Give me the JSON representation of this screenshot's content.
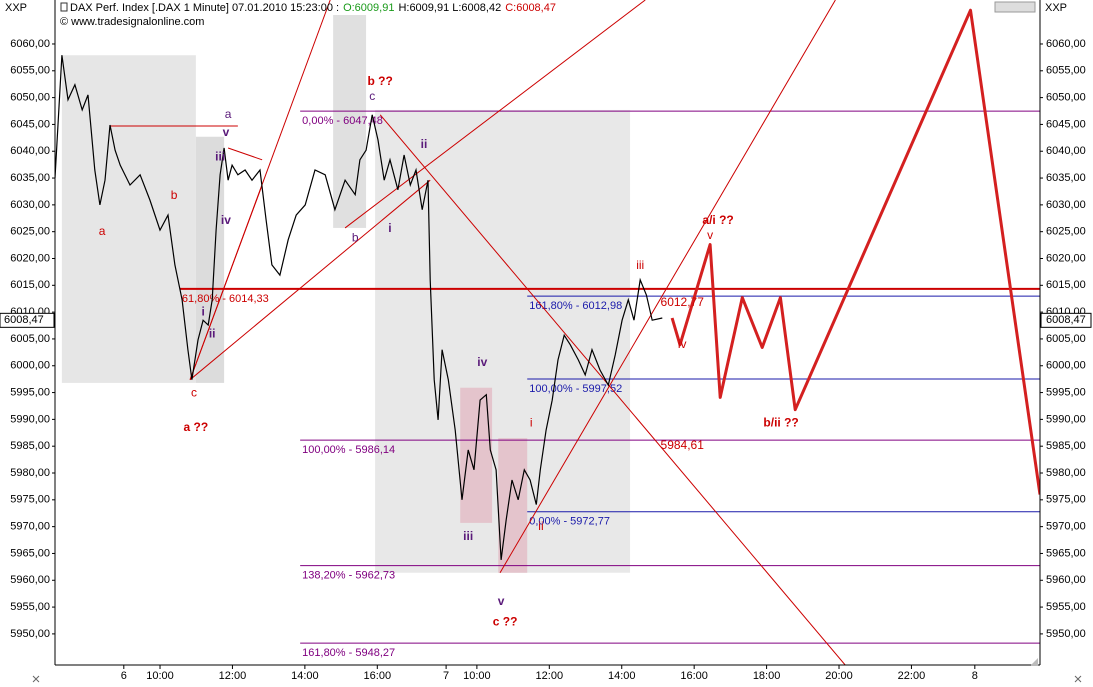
{
  "chart_data": {
    "type": "line",
    "symbol": "XXP",
    "title": "DAX Perf. Index [.DAX  1 Minute] 07.01.2010 15:23:00 :",
    "ohlc": [
      {
        "text": "O:6009,91",
        "color": "#1a9a1a"
      },
      {
        "text": "H:6009,91 L:6008,42",
        "color": "#000000"
      },
      {
        "text": "C:6008,47",
        "color": "#cc0000"
      }
    ],
    "copyright": "© www.tradesignalonline.com",
    "xlim": [
      7.1,
      34.3
    ],
    "ylim": [
      5944.2,
      6068.2
    ],
    "xticks": [
      {
        "value": 9,
        "label": "6"
      },
      {
        "value": 10,
        "label": "10:00"
      },
      {
        "value": 12,
        "label": "12:00"
      },
      {
        "value": 14,
        "label": "14:00"
      },
      {
        "value": 16,
        "label": "16:00"
      },
      {
        "value": 17.9,
        "label": "7"
      },
      {
        "value": 18.75,
        "label": "10:00"
      },
      {
        "value": 20.75,
        "label": "12:00"
      },
      {
        "value": 22.75,
        "label": "14:00"
      },
      {
        "value": 24.75,
        "label": "16:00"
      },
      {
        "value": 26.75,
        "label": "18:00"
      },
      {
        "value": 28.75,
        "label": "20:00"
      },
      {
        "value": 30.75,
        "label": "22:00"
      },
      {
        "value": 32.5,
        "label": "8"
      }
    ],
    "yticks": [
      {
        "value": 5950,
        "label": "5950,00"
      },
      {
        "value": 5955,
        "label": "5955,00"
      },
      {
        "value": 5960,
        "label": "5960,00"
      },
      {
        "value": 5965,
        "label": "5965,00"
      },
      {
        "value": 5970,
        "label": "5970,00"
      },
      {
        "value": 5975,
        "label": "5975,00"
      },
      {
        "value": 5980,
        "label": "5980,00"
      },
      {
        "value": 5985,
        "label": "5985,00"
      },
      {
        "value": 5990,
        "label": "5990,00"
      },
      {
        "value": 5995,
        "label": "5995,00"
      },
      {
        "value": 6000,
        "label": "6000,00"
      },
      {
        "value": 6005,
        "label": "6005,00"
      },
      {
        "value": 6010,
        "label": "6010,00"
      },
      {
        "value": 6015,
        "label": "6015,00"
      },
      {
        "value": 6020,
        "label": "6020,00"
      },
      {
        "value": 6025,
        "label": "6025,00"
      },
      {
        "value": 6030,
        "label": "6030,00"
      },
      {
        "value": 6035,
        "label": "6035,00"
      },
      {
        "value": 6040,
        "label": "6040,00"
      },
      {
        "value": 6045,
        "label": "6045,00"
      },
      {
        "value": 6050,
        "label": "6050,00"
      },
      {
        "value": 6055,
        "label": "6055,00"
      },
      {
        "value": 6060,
        "label": "6060,00"
      }
    ],
    "last_price": {
      "value": 6008.47,
      "label": "6008,47"
    },
    "zones": [
      {
        "x": [
          7.29,
          10.99
        ],
        "y": [
          5996.8,
          6057.9
        ],
        "color": "#e6e6e6"
      },
      {
        "x": [
          10.99,
          11.77
        ],
        "y": [
          5996.8,
          6042.7
        ],
        "color": "#dcdcdc"
      },
      {
        "x": [
          14.78,
          15.69
        ],
        "y": [
          6025.7,
          6065.4
        ],
        "color": "#e0e0e0"
      },
      {
        "x": [
          15.94,
          22.98
        ],
        "y": [
          5961.4,
          6047.7
        ],
        "color": "#e8e8e8"
      },
      {
        "x": [
          18.29,
          19.17
        ],
        "y": [
          5970.7,
          5995.9
        ],
        "color": "#e4c4cc"
      },
      {
        "x": [
          19.34,
          20.14
        ],
        "y": [
          5961.4,
          5986.5
        ],
        "color": "#e4c4cc"
      }
    ],
    "levels": [
      {
        "label": "0,00% - 6047,48",
        "value": 6047.48,
        "x0": 13.87,
        "color": "#800080"
      },
      {
        "label": "100,00% - 5986,14",
        "value": 5986.14,
        "x0": 13.87,
        "color": "#800080"
      },
      {
        "label": "138,20% - 5962,73",
        "value": 5962.73,
        "x0": 13.87,
        "color": "#800080"
      },
      {
        "label": "161,80% - 5948,27",
        "value": 5948.27,
        "x0": 13.87,
        "color": "#800080"
      },
      {
        "label": "161,80% - 6012,98",
        "value": 6012.98,
        "x0": 20.14,
        "color": "#1a1aaa"
      },
      {
        "label": "100,00% - 5997,52",
        "value": 5997.52,
        "x0": 20.14,
        "color": "#1a1aaa"
      },
      {
        "label": "0,00% - 5972,77",
        "value": 5972.77,
        "x0": 20.14,
        "color": "#1a1aaa"
      },
      {
        "label": "61,80% - 6014,33",
        "value": 6014.33,
        "x0": 10.55,
        "color": "#cc0000",
        "thick": true
      }
    ],
    "lines": [
      {
        "x": [
          10.83,
          14.7
        ],
        "y": [
          5997.4,
          6068.2
        ],
        "color": "#cc0000"
      },
      {
        "x": [
          10.83,
          12.82
        ],
        "y": [
          5997.4,
          6033.7
        ],
        "color": "#cc0000"
      },
      {
        "x": [
          10.83,
          17.46
        ],
        "y": [
          5997.4,
          6034.6
        ],
        "color": "#cc0000"
      },
      {
        "x": [
          11.88,
          12.82
        ],
        "y": [
          6040.6,
          6038.4
        ],
        "color": "#cc0000"
      },
      {
        "x": [
          15.11,
          23.4
        ],
        "y": [
          6025.7,
          6068.2
        ],
        "color": "#cc0000"
      },
      {
        "x": [
          19.39,
          28.65
        ],
        "y": [
          5961.4,
          6068.2
        ],
        "color": "#cc0000"
      },
      {
        "x": [
          16.08,
          28.92
        ],
        "y": [
          6046.8,
          5944.2
        ],
        "color": "#cc0000"
      },
      {
        "x": [
          8.62,
          12.15
        ],
        "y": [
          6044.7,
          6044.7
        ],
        "color": "#cc0000"
      }
    ],
    "x": [
      7.1,
      7.29,
      7.46,
      7.65,
      7.85,
      8.01,
      8.2,
      8.34,
      8.48,
      8.62,
      8.76,
      8.9,
      9.17,
      9.45,
      9.72,
      10.0,
      10.22,
      10.41,
      10.61,
      10.77,
      10.88,
      11.05,
      11.19,
      11.33,
      11.44,
      11.55,
      11.66,
      11.77,
      11.88,
      11.99,
      12.15,
      12.35,
      12.54,
      12.76,
      12.93,
      13.09,
      13.31,
      13.54,
      13.76,
      14.01,
      14.28,
      14.56,
      14.83,
      15.11,
      15.39,
      15.52,
      15.69,
      15.86,
      16.02,
      16.19,
      16.35,
      16.57,
      16.74,
      16.91,
      17.07,
      17.24,
      17.4,
      17.46,
      17.57,
      17.68,
      17.79,
      17.96,
      18.15,
      18.34,
      18.51,
      18.67,
      18.84,
      19.01,
      19.12,
      19.28,
      19.42,
      19.56,
      19.72,
      19.89,
      20.06,
      20.22,
      20.39,
      20.5,
      20.66,
      20.83,
      20.99,
      21.16,
      21.33,
      21.55,
      21.74,
      21.93,
      22.15,
      22.38,
      22.57,
      22.76,
      22.93,
      23.09,
      23.26,
      23.43,
      23.59,
      23.87
    ],
    "series": [
      {
        "color": "#000000",
        "values": [
          6035.0,
          6057.9,
          6049.6,
          6052.4,
          6047.7,
          6050.5,
          6036.5,
          6030.0,
          6034.6,
          6044.9,
          6040.2,
          6037.4,
          6033.7,
          6035.6,
          6030.9,
          6025.3,
          6028.1,
          6018.8,
          6012.3,
          6003.0,
          5997.4,
          6004.8,
          6008.5,
          6007.6,
          6012.3,
          6025.3,
          6035.6,
          6040.6,
          6034.6,
          6037.4,
          6035.6,
          6036.5,
          6034.6,
          6036.5,
          6027.2,
          6018.8,
          6016.9,
          6023.5,
          6028.1,
          6030.0,
          6036.5,
          6035.6,
          6029.1,
          6034.6,
          6031.9,
          6038.4,
          6040.2,
          6046.8,
          6042.1,
          6034.6,
          6038.4,
          6032.8,
          6039.3,
          6033.7,
          6036.5,
          6029.1,
          6034.6,
          6016.0,
          5997.4,
          5989.9,
          6003.0,
          5997.4,
          5988.0,
          5975.0,
          5984.3,
          5980.6,
          5993.6,
          5994.6,
          5984.3,
          5980.6,
          5963.8,
          5971.3,
          5978.7,
          5975.0,
          5980.6,
          5978.7,
          5974.1,
          5980.6,
          5988.0,
          5993.6,
          6001.1,
          6005.7,
          6003.9,
          6001.1,
          5998.3,
          6003.0,
          5999.2,
          5996.4,
          6002.0,
          6008.5,
          6012.3,
          6008.5,
          6016.0,
          6013.2,
          6008.5,
          6008.9
        ]
      }
    ],
    "forecast": {
      "color": "#d42020",
      "x": [
        24.14,
        24.36,
        25.19,
        25.47,
        26.08,
        26.63,
        27.13,
        27.54,
        32.38,
        34.3
      ],
      "values": [
        6008.9,
        6003.9,
        6022.6,
        5994.1,
        6012.7,
        6003.4,
        6012.7,
        5991.8,
        6066.3,
        5976.0
      ]
    },
    "labels": [
      {
        "text": "a",
        "x": 8.4,
        "y": 6025.0,
        "color": "#cc0000"
      },
      {
        "text": "b",
        "x": 10.39,
        "y": 6031.7,
        "color": "#cc0000"
      },
      {
        "text": "c",
        "x": 10.94,
        "y": 5994.9,
        "color": "#cc0000"
      },
      {
        "text": "a ??",
        "x": 10.99,
        "y": 5988.4,
        "color": "#cc0000",
        "bold": true
      },
      {
        "text": "a",
        "x": 11.88,
        "y": 6046.8,
        "color": "#5a1a7a"
      },
      {
        "text": "v",
        "x": 11.82,
        "y": 6043.4,
        "color": "#5a1a7a",
        "bold": true
      },
      {
        "text": "iii",
        "x": 11.66,
        "y": 6038.9,
        "color": "#5a1a7a",
        "bold": true
      },
      {
        "text": "iv",
        "x": 11.82,
        "y": 6027.0,
        "color": "#5a1a7a",
        "bold": true
      },
      {
        "text": "i",
        "x": 11.19,
        "y": 6010.0,
        "color": "#5a1a7a",
        "bold": true
      },
      {
        "text": "ii",
        "x": 11.44,
        "y": 6005.9,
        "color": "#5a1a7a",
        "bold": true
      },
      {
        "text": "b ??",
        "x": 16.08,
        "y": 6052.9,
        "color": "#cc0000",
        "bold": true
      },
      {
        "text": "c",
        "x": 15.86,
        "y": 6050.1,
        "color": "#5a1a7a"
      },
      {
        "text": "ii",
        "x": 17.29,
        "y": 6041.2,
        "color": "#5a1a7a",
        "bold": true
      },
      {
        "text": "b",
        "x": 15.39,
        "y": 6023.8,
        "color": "#5a1a7a"
      },
      {
        "text": "i",
        "x": 16.35,
        "y": 6025.5,
        "color": "#5a1a7a",
        "bold": true
      },
      {
        "text": "iv",
        "x": 18.9,
        "y": 6000.5,
        "color": "#5a1a7a",
        "bold": true
      },
      {
        "text": "iii",
        "x": 18.51,
        "y": 5968.1,
        "color": "#5a1a7a",
        "bold": true
      },
      {
        "text": "v",
        "x": 19.42,
        "y": 5956.0,
        "color": "#5a1a7a",
        "bold": true
      },
      {
        "text": "c ??",
        "x": 19.53,
        "y": 5952.2,
        "color": "#cc0000",
        "bold": true
      },
      {
        "text": "i",
        "x": 20.25,
        "y": 5989.3,
        "color": "#cc0000"
      },
      {
        "text": "ii",
        "x": 20.52,
        "y": 5970.0,
        "color": "#cc0000"
      },
      {
        "text": "iii",
        "x": 23.26,
        "y": 6018.6,
        "color": "#cc0000"
      },
      {
        "text": "a/i ??",
        "x": 25.41,
        "y": 6027.0,
        "color": "#cc0000",
        "bold": true
      },
      {
        "text": "v",
        "x": 25.19,
        "y": 6024.2,
        "color": "#cc0000"
      },
      {
        "text": "iv",
        "x": 24.42,
        "y": 6003.9,
        "color": "#cc0000"
      },
      {
        "text": "b/ii ??",
        "x": 27.15,
        "y": 5989.3,
        "color": "#cc0000",
        "bold": true
      },
      {
        "text": "6012,77",
        "x": 24.42,
        "y": 6011.7,
        "color": "#cc0000"
      },
      {
        "text": "5984,61",
        "x": 24.42,
        "y": 5985.1,
        "color": "#cc0000"
      }
    ]
  }
}
